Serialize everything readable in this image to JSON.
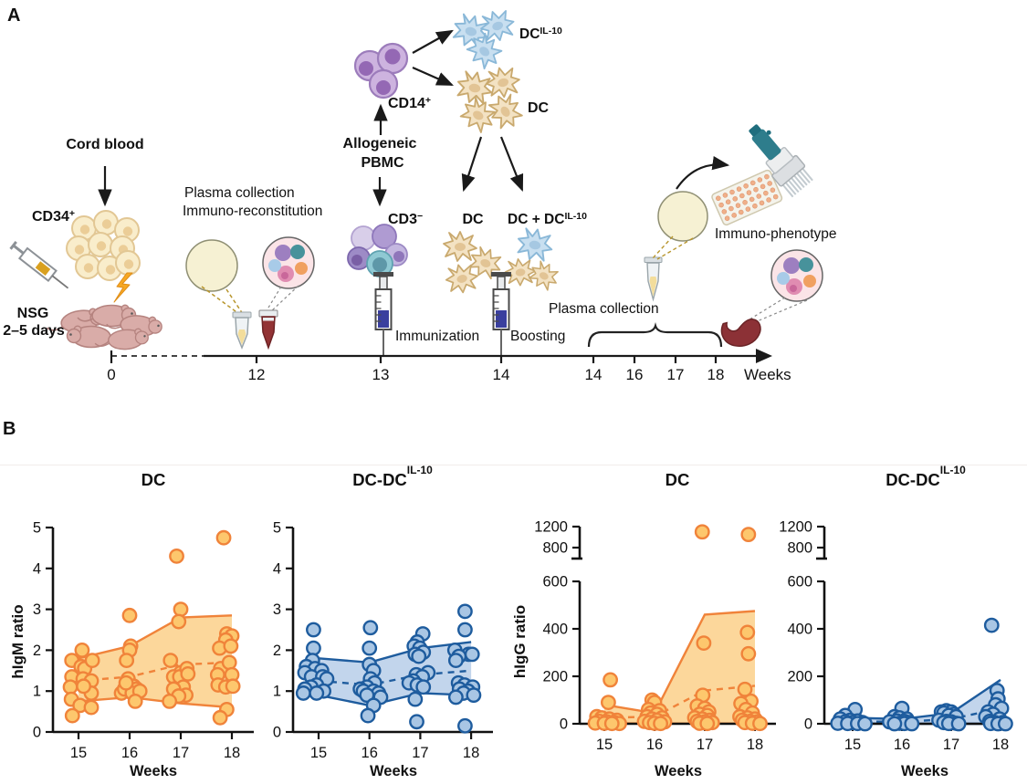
{
  "figure": {
    "panel_a_label": "A",
    "panel_b_label": "B"
  },
  "colors": {
    "orange": {
      "stroke": "#F0833A",
      "fill": "#FDC76D",
      "band": "#FBD08A"
    },
    "blue": {
      "stroke": "#1E5C9E",
      "fill": "#A9C6E4",
      "band": "#B7CEE9"
    },
    "axis": "#111111"
  },
  "panelA": {
    "labels": {
      "cord_blood": "Cord blood",
      "cd34": {
        "base": "CD34",
        "sup": "+"
      },
      "nsg_line1": "NSG",
      "nsg_line2": "2–5 days",
      "plasma_collection_1a": "Plasma collection",
      "plasma_collection_1b": "Immuno-reconstitution",
      "allogeneic_l1": "Allogeneic",
      "allogeneic_l2": "PBMC",
      "cd14": {
        "base": "CD14",
        "sup": "+"
      },
      "cd3": {
        "base": "CD3",
        "sup": "−"
      },
      "dc_il10_top": {
        "base": "DC",
        "sup": "IL-10"
      },
      "dc_top": "DC",
      "dc_bottom": "DC",
      "dc_plus": {
        "base": "DC + DC",
        "sup": "IL-10"
      },
      "immunization": "Immunization",
      "boosting": "Boosting",
      "plasma_collection_2": "Plasma collection",
      "immunophenotype": "Immuno-phenotype"
    },
    "timeline": {
      "ticks1": [
        "0",
        "12",
        "13",
        "14"
      ],
      "ticks2": [
        "14",
        "16",
        "17",
        "18"
      ],
      "weeks_label": "Weeks"
    }
  },
  "chart_data": [
    {
      "type": "scatter",
      "title": {
        "base": "DC",
        "sup": ""
      },
      "xlabel": "Weeks",
      "ylabel": "hIgM ratio",
      "scheme": "orange",
      "x_ticks": [
        "15",
        "16",
        "17",
        "18"
      ],
      "x_weeks": [
        15,
        16,
        17,
        18
      ],
      "y_ticks": [
        0,
        1,
        2,
        3,
        4,
        5
      ],
      "ylim": [
        0,
        5
      ],
      "axis_break": false,
      "band": {
        "upper": [
          1.8,
          2.1,
          2.8,
          2.85
        ],
        "median": [
          1.25,
          1.35,
          1.65,
          1.7
        ],
        "lower": [
          0.75,
          0.85,
          0.7,
          0.6
        ]
      },
      "points": [
        [
          14.87,
          1.75
        ],
        [
          15.07,
          2.0
        ],
        [
          14.87,
          1.35
        ],
        [
          14.84,
          1.1
        ],
        [
          15.05,
          1.6
        ],
        [
          15.12,
          1.55
        ],
        [
          15.27,
          1.75
        ],
        [
          15.09,
          1.3
        ],
        [
          15.25,
          1.25
        ],
        [
          14.86,
          0.8
        ],
        [
          15.03,
          0.65
        ],
        [
          15.25,
          0.6
        ],
        [
          14.88,
          0.4
        ],
        [
          15.25,
          0.95
        ],
        [
          15.1,
          1.12
        ],
        [
          16.0,
          2.85
        ],
        [
          16.02,
          2.1
        ],
        [
          16.0,
          2.0
        ],
        [
          15.94,
          1.75
        ],
        [
          15.97,
          1.3
        ],
        [
          15.84,
          0.95
        ],
        [
          15.9,
          1.05
        ],
        [
          16.08,
          1.12
        ],
        [
          16.14,
          1.05
        ],
        [
          16.05,
          0.95
        ],
        [
          16.2,
          1.0
        ],
        [
          16.11,
          0.75
        ],
        [
          15.93,
          1.2
        ],
        [
          16.92,
          4.3
        ],
        [
          17.0,
          3.0
        ],
        [
          16.96,
          2.7
        ],
        [
          16.8,
          1.75
        ],
        [
          17.0,
          1.45
        ],
        [
          16.86,
          1.35
        ],
        [
          16.98,
          1.35
        ],
        [
          17.12,
          1.55
        ],
        [
          17.14,
          1.42
        ],
        [
          17.05,
          1.1
        ],
        [
          16.86,
          1.05
        ],
        [
          17.1,
          0.9
        ],
        [
          16.96,
          0.88
        ],
        [
          16.78,
          0.75
        ],
        [
          17.84,
          4.75
        ],
        [
          17.9,
          2.4
        ],
        [
          18.0,
          2.35
        ],
        [
          17.88,
          2.25
        ],
        [
          17.76,
          2.05
        ],
        [
          17.98,
          2.1
        ],
        [
          17.78,
          1.55
        ],
        [
          17.95,
          1.7
        ],
        [
          17.72,
          1.4
        ],
        [
          18.0,
          1.4
        ],
        [
          17.73,
          1.15
        ],
        [
          17.88,
          1.1
        ],
        [
          18.02,
          1.12
        ],
        [
          17.9,
          0.55
        ],
        [
          17.77,
          0.35
        ]
      ]
    },
    {
      "type": "scatter",
      "title": {
        "base": "DC-DC",
        "sup": "IL-10"
      },
      "xlabel": "Weeks",
      "ylabel": "",
      "scheme": "blue",
      "x_ticks": [
        "15",
        "16",
        "17",
        "18"
      ],
      "x_weeks": [
        15,
        16,
        17,
        18
      ],
      "y_ticks": [
        0,
        1,
        2,
        3,
        4,
        5
      ],
      "ylim": [
        0,
        5
      ],
      "axis_break": false,
      "band": {
        "upper": [
          1.8,
          1.7,
          2.05,
          2.2
        ],
        "median": [
          1.25,
          1.15,
          1.4,
          1.5
        ],
        "lower": [
          0.9,
          0.65,
          0.95,
          0.9
        ]
      },
      "points": [
        [
          14.9,
          2.5
        ],
        [
          14.9,
          2.05
        ],
        [
          14.88,
          1.75
        ],
        [
          14.76,
          1.6
        ],
        [
          14.93,
          1.55
        ],
        [
          15.06,
          1.5
        ],
        [
          14.73,
          1.45
        ],
        [
          14.86,
          1.35
        ],
        [
          15.08,
          1.35
        ],
        [
          15.16,
          1.3
        ],
        [
          14.96,
          1.15
        ],
        [
          14.85,
          1.1
        ],
        [
          14.73,
          1.05
        ],
        [
          15.1,
          1.0
        ],
        [
          14.7,
          0.95
        ],
        [
          14.96,
          0.95
        ],
        [
          16.02,
          2.55
        ],
        [
          16.0,
          2.05
        ],
        [
          16.0,
          1.65
        ],
        [
          16.08,
          1.5
        ],
        [
          16.02,
          1.3
        ],
        [
          16.1,
          1.2
        ],
        [
          15.95,
          1.1
        ],
        [
          15.82,
          1.05
        ],
        [
          15.88,
          1.0
        ],
        [
          16.08,
          1.0
        ],
        [
          16.18,
          0.95
        ],
        [
          15.95,
          0.9
        ],
        [
          16.22,
          0.85
        ],
        [
          16.08,
          0.65
        ],
        [
          15.97,
          0.4
        ],
        [
          17.05,
          2.4
        ],
        [
          16.94,
          2.2
        ],
        [
          16.88,
          2.1
        ],
        [
          16.99,
          2.05
        ],
        [
          17.06,
          1.95
        ],
        [
          16.9,
          1.9
        ],
        [
          16.97,
          1.85
        ],
        [
          17.15,
          1.45
        ],
        [
          16.92,
          1.4
        ],
        [
          17.04,
          1.35
        ],
        [
          16.86,
          1.25
        ],
        [
          16.78,
          1.2
        ],
        [
          16.94,
          1.15
        ],
        [
          17.06,
          1.1
        ],
        [
          16.9,
          0.8
        ],
        [
          16.93,
          0.25
        ],
        [
          17.88,
          2.95
        ],
        [
          17.88,
          2.5
        ],
        [
          17.68,
          2.0
        ],
        [
          17.95,
          1.9
        ],
        [
          17.76,
          1.85
        ],
        [
          18.02,
          1.9
        ],
        [
          17.7,
          1.75
        ],
        [
          17.75,
          1.2
        ],
        [
          17.87,
          1.15
        ],
        [
          18.03,
          1.1
        ],
        [
          17.77,
          1.05
        ],
        [
          17.94,
          1.0
        ],
        [
          17.85,
          0.95
        ],
        [
          18.05,
          0.9
        ],
        [
          17.7,
          0.85
        ],
        [
          17.88,
          0.15
        ]
      ]
    },
    {
      "type": "scatter",
      "title": {
        "base": "DC",
        "sup": ""
      },
      "xlabel": "Weeks",
      "ylabel": "hIgG ratio",
      "scheme": "orange",
      "x_ticks": [
        "15",
        "16",
        "17",
        "18"
      ],
      "x_weeks": [
        15,
        16,
        17,
        18
      ],
      "y_ticks_main": [
        0,
        200,
        400,
        600
      ],
      "y_ticks_upper": [
        800,
        1200
      ],
      "ylim": [
        0,
        1200
      ],
      "axis_break": true,
      "band": {
        "upper": [
          80,
          45,
          460,
          475
        ],
        "median": [
          25,
          30,
          140,
          160
        ],
        "lower": [
          2,
          1,
          1,
          1
        ]
      },
      "points": [
        [
          16.95,
          1100
        ],
        [
          17.87,
          1050
        ],
        [
          15.12,
          185
        ],
        [
          15.08,
          90
        ],
        [
          14.85,
          30
        ],
        [
          14.95,
          25
        ],
        [
          15.1,
          20
        ],
        [
          15.25,
          15
        ],
        [
          14.9,
          10
        ],
        [
          15.05,
          8
        ],
        [
          15.2,
          5
        ],
        [
          14.82,
          3
        ],
        [
          15.0,
          2
        ],
        [
          15.3,
          1
        ],
        [
          15.15,
          1
        ],
        [
          15.95,
          100
        ],
        [
          16.0,
          90
        ],
        [
          15.88,
          60
        ],
        [
          16.1,
          55
        ],
        [
          15.92,
          45
        ],
        [
          16.05,
          40
        ],
        [
          15.85,
          30
        ],
        [
          16.15,
          25
        ],
        [
          15.95,
          20
        ],
        [
          16.05,
          15
        ],
        [
          15.8,
          10
        ],
        [
          16.2,
          8
        ],
        [
          15.9,
          5
        ],
        [
          16.0,
          2
        ],
        [
          16.12,
          1
        ],
        [
          16.98,
          340
        ],
        [
          16.96,
          120
        ],
        [
          16.85,
          75
        ],
        [
          17.0,
          65
        ],
        [
          17.08,
          50
        ],
        [
          16.9,
          40
        ],
        [
          17.05,
          35
        ],
        [
          16.8,
          25
        ],
        [
          16.95,
          20
        ],
        [
          17.1,
          15
        ],
        [
          16.85,
          10
        ],
        [
          17.0,
          8
        ],
        [
          17.15,
          5
        ],
        [
          16.9,
          2
        ],
        [
          17.05,
          1
        ],
        [
          17.85,
          385
        ],
        [
          17.87,
          295
        ],
        [
          17.8,
          145
        ],
        [
          17.92,
          95
        ],
        [
          17.72,
          85
        ],
        [
          17.82,
          60
        ],
        [
          17.95,
          45
        ],
        [
          17.7,
          30
        ],
        [
          17.85,
          25
        ],
        [
          18.0,
          20
        ],
        [
          17.75,
          15
        ],
        [
          17.9,
          10
        ],
        [
          18.05,
          8
        ],
        [
          17.8,
          5
        ],
        [
          17.95,
          2
        ],
        [
          18.1,
          1
        ]
      ]
    },
    {
      "type": "scatter",
      "title": {
        "base": "DC-DC",
        "sup": "IL-10"
      },
      "xlabel": "Weeks",
      "ylabel": "",
      "scheme": "blue",
      "x_ticks": [
        "15",
        "16",
        "17",
        "18"
      ],
      "x_weeks": [
        15,
        16,
        17,
        18
      ],
      "y_ticks_main": [
        0,
        200,
        400,
        600
      ],
      "y_ticks_upper": [
        800,
        1200
      ],
      "ylim": [
        0,
        1200
      ],
      "axis_break": true,
      "band": {
        "upper": [
          25,
          20,
          45,
          185
        ],
        "median": [
          10,
          8,
          20,
          65
        ],
        "lower": [
          1,
          0,
          0,
          0
        ]
      },
      "points": [
        [
          17.82,
          415
        ],
        [
          15.05,
          60
        ],
        [
          14.85,
          35
        ],
        [
          14.75,
          20
        ],
        [
          14.95,
          15
        ],
        [
          15.1,
          12
        ],
        [
          14.85,
          8
        ],
        [
          15.0,
          5
        ],
        [
          15.2,
          5
        ],
        [
          14.7,
          2
        ],
        [
          14.9,
          1
        ],
        [
          15.1,
          1
        ],
        [
          15.25,
          0
        ],
        [
          16.0,
          65
        ],
        [
          15.85,
          30
        ],
        [
          15.95,
          25
        ],
        [
          16.1,
          20
        ],
        [
          15.9,
          12
        ],
        [
          16.05,
          10
        ],
        [
          15.75,
          8
        ],
        [
          16.15,
          5
        ],
        [
          15.95,
          2
        ],
        [
          16.05,
          1
        ],
        [
          15.85,
          0
        ],
        [
          16.2,
          0
        ],
        [
          16.9,
          55
        ],
        [
          16.8,
          50
        ],
        [
          17.0,
          50
        ],
        [
          16.85,
          45
        ],
        [
          17.05,
          40
        ],
        [
          16.95,
          35
        ],
        [
          17.1,
          30
        ],
        [
          16.75,
          15
        ],
        [
          16.9,
          10
        ],
        [
          17.0,
          8
        ],
        [
          16.85,
          5
        ],
        [
          17.1,
          2
        ],
        [
          16.95,
          1
        ],
        [
          17.15,
          0
        ],
        [
          17.93,
          140
        ],
        [
          17.95,
          105
        ],
        [
          17.9,
          80
        ],
        [
          18.02,
          65
        ],
        [
          17.75,
          50
        ],
        [
          17.85,
          40
        ],
        [
          17.7,
          30
        ],
        [
          17.98,
          20
        ],
        [
          17.78,
          10
        ],
        [
          17.88,
          5
        ],
        [
          18.05,
          5
        ],
        [
          17.8,
          1
        ],
        [
          17.95,
          0
        ],
        [
          18.1,
          0
        ]
      ]
    }
  ]
}
